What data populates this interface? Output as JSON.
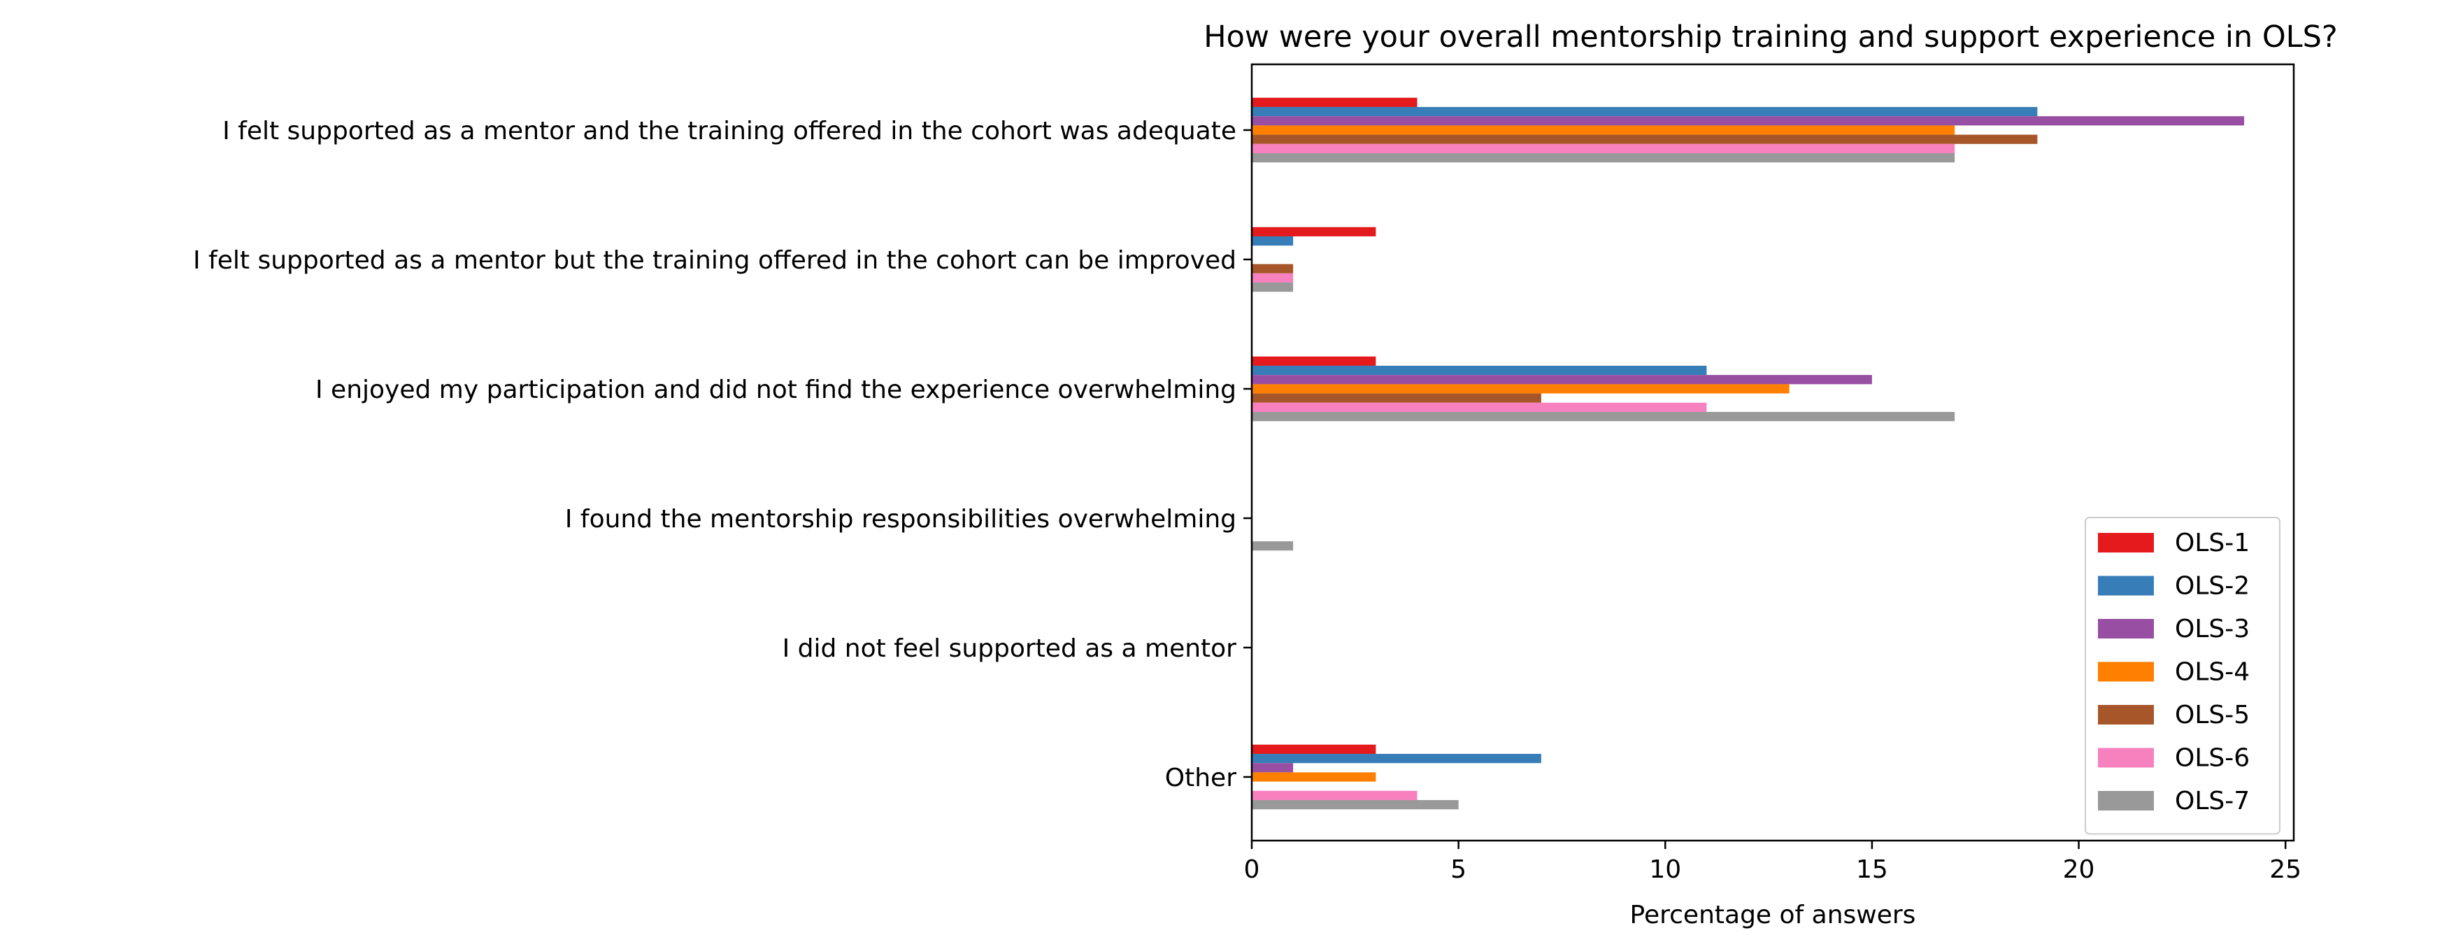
{
  "chart_data": {
    "type": "bar",
    "orientation": "horizontal",
    "title": "How were your overall mentorship training and support experience in OLS?",
    "xlabel": "Percentage of answers",
    "ylabel": "",
    "xlim": [
      0,
      25.2
    ],
    "xticks": [
      0,
      5,
      10,
      15,
      20,
      25
    ],
    "grid": false,
    "legend_position": "lower-right",
    "categories": [
      "I felt supported as a mentor and the training offered in the cohort was adequate",
      "I felt supported as a mentor but the training offered in the cohort can be improved",
      "I enjoyed my participation and did not find the experience overwhelming",
      "I found the mentorship responsibilities overwhelming",
      "I did not feel supported as a mentor",
      "Other"
    ],
    "series": [
      {
        "name": "OLS-1",
        "color": "#e41a1c",
        "values": [
          4,
          3,
          3,
          0,
          0,
          3
        ]
      },
      {
        "name": "OLS-2",
        "color": "#377eb8",
        "values": [
          19,
          1,
          11,
          0,
          0,
          7
        ]
      },
      {
        "name": "OLS-3",
        "color": "#984ea3",
        "values": [
          24,
          0,
          15,
          0,
          0,
          1
        ]
      },
      {
        "name": "OLS-4",
        "color": "#ff7f00",
        "values": [
          17,
          0,
          13,
          0,
          0,
          3
        ]
      },
      {
        "name": "OLS-5",
        "color": "#a65628",
        "values": [
          19,
          1,
          7,
          0,
          0,
          0
        ]
      },
      {
        "name": "OLS-6",
        "color": "#f781bf",
        "values": [
          17,
          1,
          11,
          0,
          0,
          4
        ]
      },
      {
        "name": "OLS-7",
        "color": "#999999",
        "values": [
          17,
          1,
          17,
          1,
          0,
          5
        ]
      }
    ]
  }
}
